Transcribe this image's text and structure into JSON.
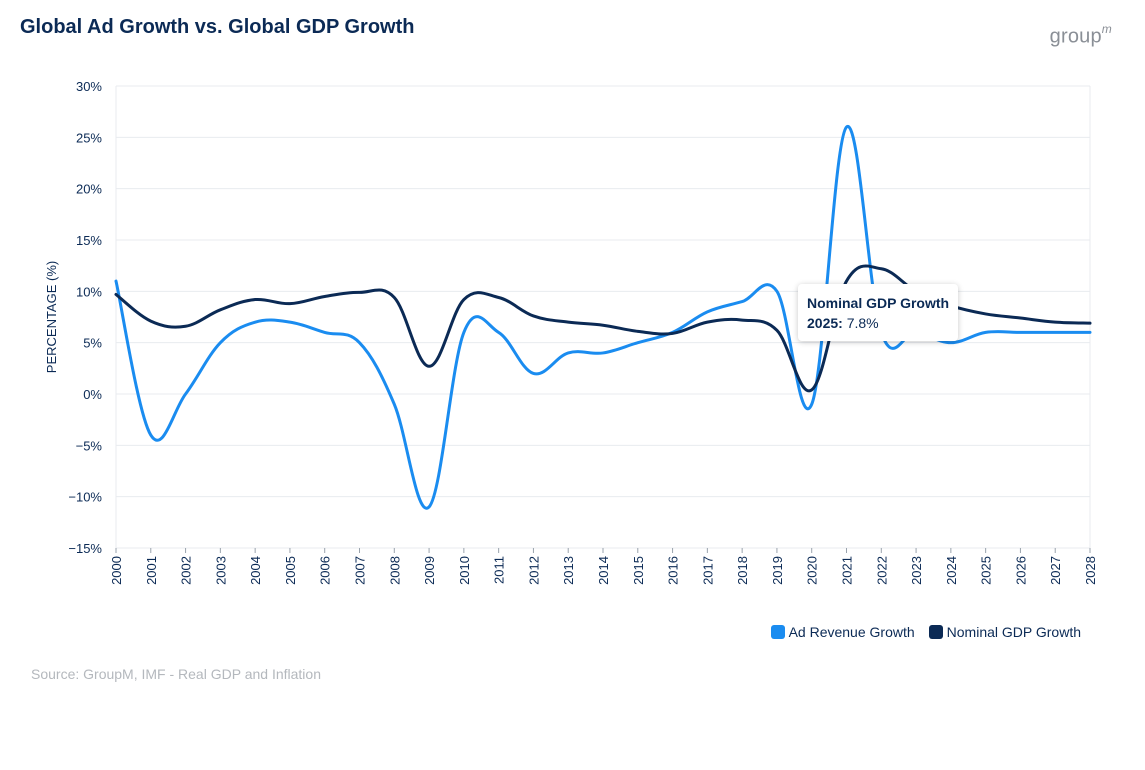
{
  "title": "Global Ad Growth vs. Global GDP Growth",
  "logo": {
    "text": "group",
    "superscript": "m"
  },
  "source": "Source: GroupM, IMF - Real GDP and Inflation",
  "colors": {
    "ad": "#1a8cf0",
    "gdp": "#0b2a55",
    "grid": "#e8ebef",
    "axis_text": "#0b2a55"
  },
  "tooltip": {
    "series": "Nominal GDP Growth",
    "year_label": "2025:",
    "value": "7.8%"
  },
  "chart_data": {
    "type": "line",
    "title": "Global Ad Growth vs. Global GDP Growth",
    "xlabel": "",
    "ylabel": "PERCENTAGE (%)",
    "ylim": [
      -15,
      30
    ],
    "yticks": [
      30,
      25,
      20,
      15,
      10,
      5,
      0,
      -5,
      -10,
      -15
    ],
    "ytick_labels": [
      "30%",
      "25%",
      "20%",
      "15%",
      "10%",
      "5%",
      "0%",
      "−5%",
      "−10%",
      "−15%"
    ],
    "x": [
      "2000",
      "2001",
      "2002",
      "2003",
      "2004",
      "2005",
      "2006",
      "2007",
      "2008",
      "2009",
      "2010",
      "2011",
      "2012",
      "2013",
      "2014",
      "2015",
      "2016",
      "2017",
      "2018",
      "2019",
      "2020",
      "2021",
      "2022",
      "2023",
      "2024",
      "2025",
      "2026",
      "2027",
      "2028"
    ],
    "series": [
      {
        "name": "Ad Revenue Growth",
        "values": [
          11,
          -4,
          0,
          5,
          7,
          7,
          6,
          5,
          -1,
          -11,
          6,
          6,
          2,
          4,
          4,
          5,
          6,
          8,
          9,
          10,
          -1,
          26,
          6,
          6,
          5,
          6,
          6,
          6,
          6
        ]
      },
      {
        "name": "Nominal GDP Growth",
        "values": [
          9.7,
          7.1,
          6.6,
          8.2,
          9.2,
          8.8,
          9.5,
          9.9,
          9.4,
          2.7,
          9.2,
          9.4,
          7.6,
          7.0,
          6.7,
          6.1,
          5.9,
          7.0,
          7.2,
          6.2,
          0.4,
          11.0,
          12.2,
          10.0,
          8.6,
          7.8,
          7.4,
          7.0,
          6.9
        ]
      }
    ],
    "legend_position": "bottom-right"
  }
}
